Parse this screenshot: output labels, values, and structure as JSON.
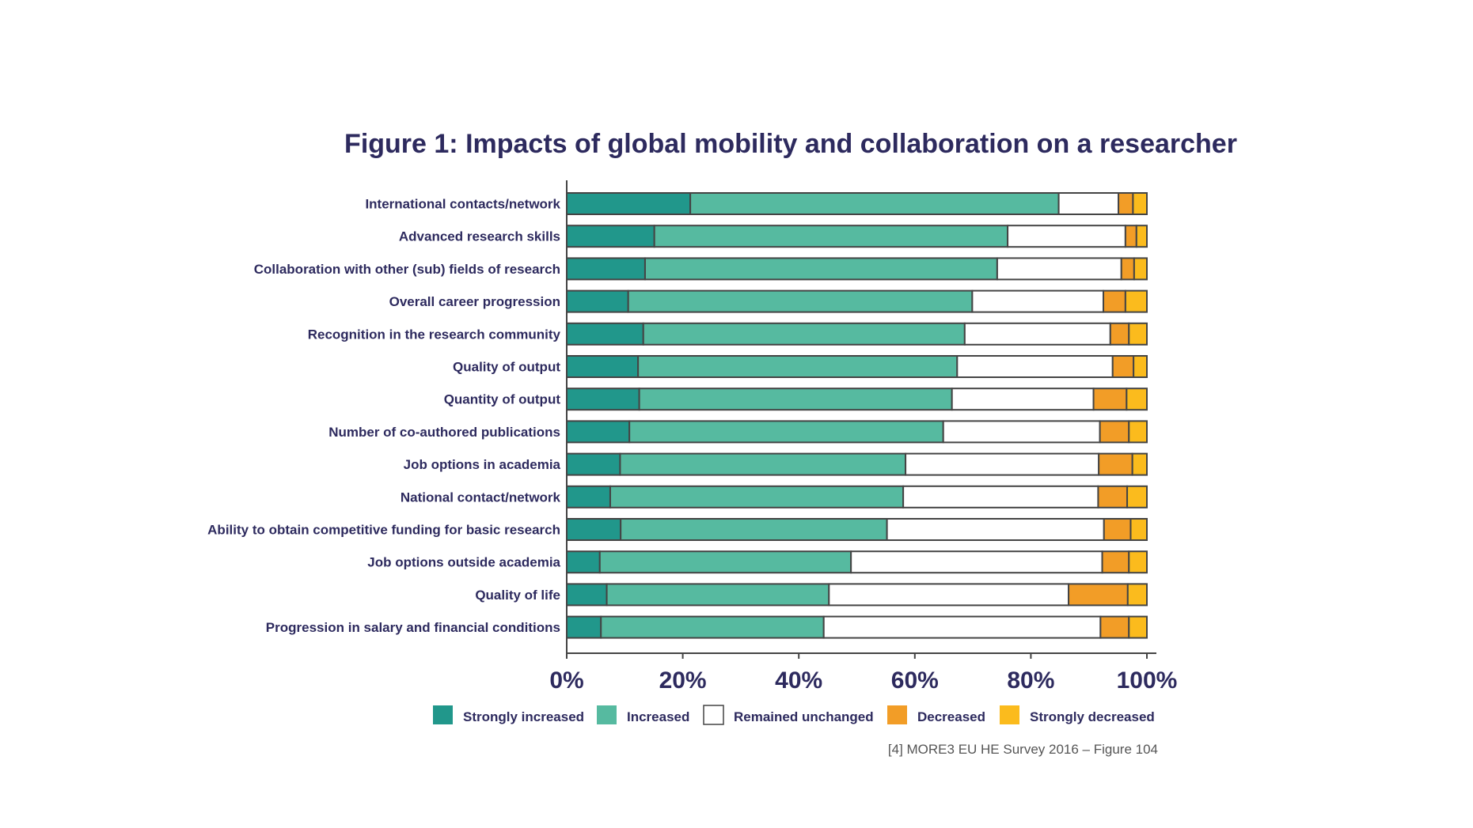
{
  "chart_data": {
    "type": "bar",
    "orientation": "horizontal",
    "stacked": true,
    "title": "Figure 1: Impacts of global mobility and collaboration on a researcher",
    "source": "[4] MORE3 EU HE Survey 2016 – Figure 104",
    "xlim": [
      0,
      100
    ],
    "x_ticks": [
      "0%",
      "20%",
      "40%",
      "60%",
      "80%",
      "100%"
    ],
    "grid": false,
    "legend_position": "bottom",
    "categories": [
      "International contacts/network",
      "Advanced research skills",
      "Collaboration with other (sub) fields of research",
      "Overall career progression",
      "Recognition in the research community",
      "Quality of output",
      "Quantity of output",
      "Number of co-authored publications",
      "Job options in academia",
      "National contact/network",
      "Ability to obtain competitive funding for basic research",
      "Job options outside academia",
      "Quality of life",
      "Progression in salary and financial conditions"
    ],
    "series": [
      {
        "name": "Strongly increased",
        "color": "#21978b",
        "values": [
          21.3,
          15.1,
          13.5,
          10.6,
          13.2,
          12.3,
          12.5,
          10.8,
          9.2,
          7.5,
          9.3,
          5.7,
          6.9,
          5.9
        ]
      },
      {
        "name": "Increased",
        "color": "#56baa0",
        "values": [
          63.5,
          60.9,
          60.7,
          59.3,
          55.4,
          55.0,
          53.9,
          54.1,
          49.2,
          50.5,
          45.9,
          43.3,
          38.3,
          38.4
        ]
      },
      {
        "name": "Remained unchanged",
        "color": "#ffffff",
        "values": [
          10.3,
          20.3,
          21.4,
          22.6,
          25.1,
          26.8,
          24.4,
          27.0,
          33.3,
          33.6,
          37.4,
          43.3,
          41.3,
          47.7
        ]
      },
      {
        "name": "Decreased",
        "color": "#f29d27",
        "values": [
          2.5,
          1.9,
          2.2,
          3.8,
          3.2,
          3.6,
          5.7,
          5.0,
          5.8,
          5.0,
          4.6,
          4.6,
          10.2,
          4.9
        ]
      },
      {
        "name": "Strongly decreased",
        "color": "#fbbb1d",
        "values": [
          2.4,
          1.8,
          2.2,
          3.7,
          3.1,
          2.3,
          3.5,
          3.1,
          2.5,
          3.4,
          2.8,
          3.1,
          3.3,
          3.1
        ]
      }
    ]
  }
}
